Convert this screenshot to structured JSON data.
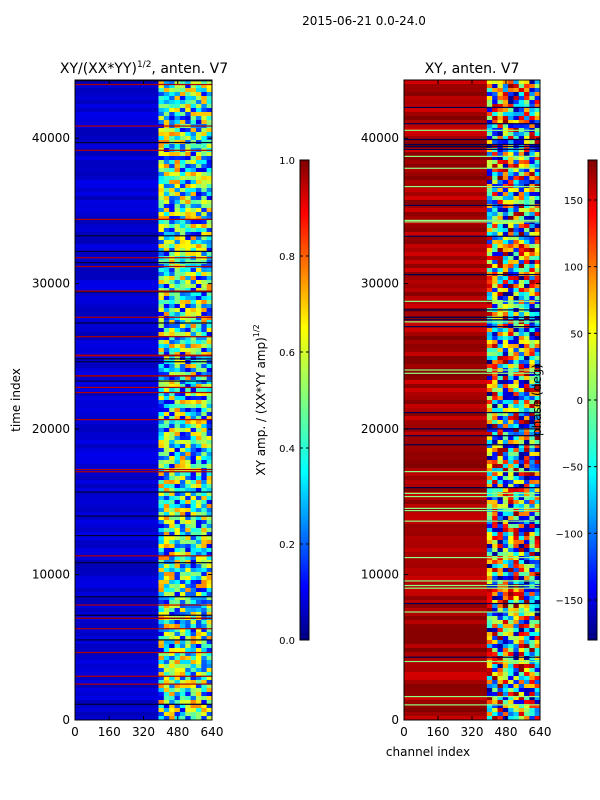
{
  "suptitle": "2015-06-21 0.0-24.0",
  "chart_data": [
    {
      "type": "heatmap",
      "title": "XY/(XX*YY)^{1/2}, anten. V7",
      "title_main": "XY/(XX*YY)",
      "title_sup": "1/2",
      "title_rest": ", anten. V7",
      "xlabel": "",
      "ylabel": "time index",
      "xlim": [
        0,
        640
      ],
      "ylim": [
        0,
        44000
      ],
      "xticks": [
        0,
        160,
        320,
        480,
        640
      ],
      "yticks": [
        0,
        10000,
        20000,
        30000,
        40000
      ],
      "colormap": "jet",
      "colorbar": {
        "label": "XY amp. / (XX*YY amp)^{1/2}",
        "label_main": "XY amp. / (XX*YY amp)",
        "label_sup": "1/2",
        "range": [
          0.0,
          1.0
        ],
        "ticks": [
          "0.0",
          "0.2",
          "0.4",
          "0.6",
          "0.8",
          "1.0"
        ],
        "tick_values": [
          0.0,
          0.2,
          0.4,
          0.6,
          0.8,
          1.0
        ]
      },
      "description_values": {
        "channels_0_390_level": 0.08,
        "channels_390_640_level_range": [
          0.1,
          0.75
        ]
      }
    },
    {
      "type": "heatmap",
      "title": "XY, anten. V7",
      "xlabel": "channel index",
      "ylabel": "",
      "xlim": [
        0,
        640
      ],
      "ylim": [
        0,
        44000
      ],
      "xticks": [
        0,
        160,
        320,
        480,
        640
      ],
      "yticks": [
        0,
        10000,
        20000,
        30000,
        40000
      ],
      "colormap": "jet",
      "colorbar": {
        "label": "phase (deg)",
        "range": [
          -180,
          180
        ],
        "ticks": [
          "−150",
          "−100",
          "−50",
          "0",
          "50",
          "100",
          "150"
        ],
        "tick_values": [
          -150,
          -100,
          -50,
          0,
          50,
          100,
          150
        ]
      },
      "description_values": {
        "channels_0_390_phase_deg": 165,
        "channels_390_640_phase_range_deg": [
          -180,
          180
        ]
      }
    }
  ]
}
